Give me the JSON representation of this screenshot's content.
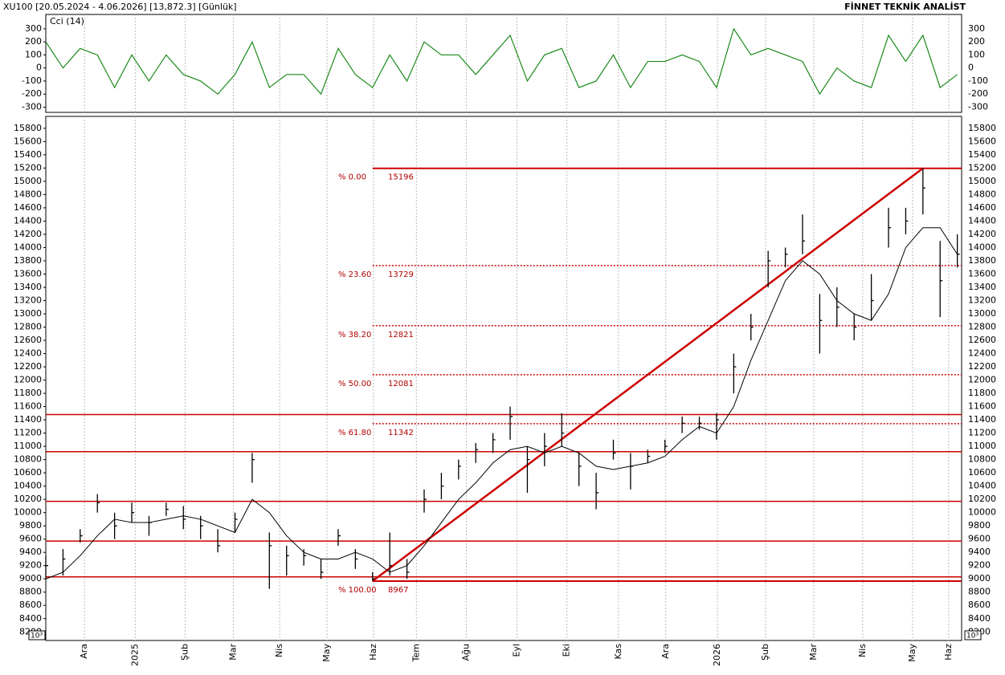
{
  "header": {
    "title": "XU100  [20.05.2024 - 4.06.2026]  [13,872.3]  [Günlük]",
    "brand": "FİNNET TEKNİK ANALİST"
  },
  "chart_data": [
    {
      "type": "line",
      "x": [
        0,
        2,
        4,
        6,
        8,
        10,
        12,
        14,
        16,
        18,
        20,
        22,
        24,
        26,
        28,
        30,
        32,
        34,
        36,
        38,
        40,
        42,
        44,
        46,
        48,
        50,
        52,
        54,
        56,
        58,
        60,
        62,
        64,
        66,
        68,
        70,
        72,
        74,
        76,
        78,
        80,
        82,
        84,
        86,
        88,
        90,
        92,
        94,
        96,
        98,
        100,
        102,
        104,
        106
      ],
      "series": [
        {
          "name": "Cci (14)",
          "color": "#1a8a1a",
          "values": [
            200,
            0,
            150,
            100,
            -150,
            100,
            -100,
            100,
            -50,
            -100,
            -200,
            -50,
            200,
            -150,
            -50,
            -50,
            -200,
            150,
            -50,
            -150,
            100,
            -100,
            200,
            100,
            100,
            -50,
            100,
            250,
            -100,
            100,
            150,
            -150,
            -100,
            100,
            -150,
            50,
            50,
            100,
            50,
            -150,
            300,
            100,
            150,
            100,
            50,
            -200,
            0,
            -100,
            -150,
            250,
            50,
            250,
            -150,
            -50
          ]
        }
      ],
      "xlim": [
        0,
        106.5
      ],
      "ylim": [
        -340,
        410
      ],
      "yticks": [
        -300,
        -200,
        -100,
        0,
        100,
        200,
        300
      ]
    },
    {
      "type": "ohlc",
      "color": "#000000",
      "x": [
        0,
        2,
        4,
        6,
        8,
        10,
        12,
        14,
        16,
        18,
        20,
        22,
        24,
        26,
        28,
        30,
        32,
        34,
        36,
        38,
        40,
        42,
        44,
        46,
        48,
        50,
        52,
        54,
        56,
        58,
        60,
        62,
        64,
        66,
        68,
        70,
        72,
        74,
        76,
        78,
        80,
        82,
        84,
        86,
        88,
        90,
        92,
        94,
        96,
        98,
        100,
        102,
        104,
        106
      ],
      "high": [
        9350,
        9450,
        9750,
        10280,
        10000,
        10150,
        9950,
        10150,
        10100,
        9950,
        9750,
        10000,
        10900,
        9700,
        9500,
        9450,
        9300,
        9750,
        9450,
        9100,
        9700,
        9300,
        10350,
        10600,
        10800,
        11050,
        11200,
        11600,
        11000,
        11200,
        11500,
        10900,
        10600,
        11100,
        10900,
        10950,
        11100,
        11450,
        11450,
        11500,
        12400,
        13000,
        13950,
        14000,
        14500,
        13300,
        13400,
        13000,
        13600,
        14600,
        14600,
        15196,
        14100,
        14200
      ],
      "low": [
        9000,
        9050,
        9550,
        10000,
        9600,
        9850,
        9650,
        9950,
        9750,
        9600,
        9400,
        9700,
        10450,
        8850,
        9050,
        9200,
        9000,
        9500,
        9150,
        8967,
        9050,
        9000,
        10000,
        10200,
        10500,
        10750,
        10900,
        11100,
        10300,
        10700,
        11000,
        10400,
        10050,
        10800,
        10350,
        10750,
        10900,
        11200,
        11250,
        11100,
        11800,
        12600,
        13400,
        13700,
        13900,
        12400,
        12800,
        12600,
        12900,
        14000,
        14200,
        14500,
        12950,
        13700
      ],
      "close": [
        9200,
        9300,
        9650,
        10150,
        9800,
        10000,
        9850,
        10050,
        9900,
        9800,
        9500,
        9900,
        10800,
        9500,
        9350,
        9350,
        9100,
        9650,
        9300,
        9000,
        9200,
        9100,
        10200,
        10400,
        10700,
        10950,
        11100,
        11450,
        10800,
        11000,
        11200,
        10700,
        10300,
        10900,
        10700,
        10850,
        11000,
        11350,
        11350,
        11400,
        12200,
        12800,
        13800,
        13900,
        14100,
        12900,
        13100,
        12800,
        13200,
        14300,
        14400,
        14900,
        13500,
        13900
      ],
      "ma": {
        "color": "#000000",
        "values": [
          9000,
          9100,
          9350,
          9650,
          9900,
          9850,
          9850,
          9900,
          9950,
          9900,
          9800,
          9700,
          10200,
          10000,
          9650,
          9400,
          9300,
          9300,
          9400,
          9300,
          9100,
          9200,
          9500,
          9850,
          10200,
          10450,
          10750,
          10950,
          11000,
          10900,
          11000,
          10900,
          10700,
          10650,
          10700,
          10750,
          10850,
          11100,
          11300,
          11200,
          11600,
          12300,
          12900,
          13500,
          13800,
          13600,
          13200,
          13000,
          12900,
          13300,
          14000,
          14300,
          14300,
          13900
        ]
      },
      "xlim": [
        0,
        106.5
      ],
      "ylim": [
        8070,
        15980
      ],
      "yticks": [
        8200,
        8400,
        8600,
        8800,
        9000,
        9200,
        9400,
        9600,
        9800,
        10000,
        10200,
        10400,
        10600,
        10800,
        11000,
        11200,
        11400,
        11600,
        11800,
        12000,
        12200,
        12400,
        12600,
        12800,
        13000,
        13200,
        13400,
        13600,
        13800,
        14000,
        14200,
        14400,
        14600,
        14800,
        15000,
        15200,
        15400,
        15600,
        15800
      ],
      "xticks": [
        {
          "value": 4.5,
          "label": "Ara"
        },
        {
          "value": 10.4,
          "label": "2025"
        },
        {
          "value": 16.2,
          "label": "Şub"
        },
        {
          "value": 21.8,
          "label": "Mar"
        },
        {
          "value": 27.2,
          "label": "Nis"
        },
        {
          "value": 32.7,
          "label": "May"
        },
        {
          "value": 38.1,
          "label": "Haz"
        },
        {
          "value": 43.1,
          "label": "Tem"
        },
        {
          "value": 48.9,
          "label": "Ağu"
        },
        {
          "value": 54.8,
          "label": "Eyl"
        },
        {
          "value": 60.6,
          "label": "Eki"
        },
        {
          "value": 66.6,
          "label": "Kas"
        },
        {
          "value": 72.1,
          "label": "Ara"
        },
        {
          "value": 78.1,
          "label": "2026"
        },
        {
          "value": 83.7,
          "label": "Şub"
        },
        {
          "value": 89.3,
          "label": "Mar"
        },
        {
          "value": 95,
          "label": "Nis"
        },
        {
          "value": 100.8,
          "label": "May"
        },
        {
          "value": 105,
          "label": "Haz"
        }
      ],
      "grid": true,
      "line_color": "#cc0000",
      "trend": {
        "x": [
          38,
          102
        ],
        "values": [
          8967,
          15196
        ]
      },
      "levels": [
        11480,
        10920,
        10170,
        9570,
        9030
      ],
      "fib": [
        {
          "label": "% 0.00",
          "value": 15196
        },
        {
          "label": "% 23.60",
          "value": 13729
        },
        {
          "label": "% 38.20",
          "value": 12821
        },
        {
          "label": "% 50.00",
          "value": 12081
        },
        {
          "label": "% 61.80",
          "value": 11342
        },
        {
          "label": "% 100.00",
          "value": 8967
        }
      ],
      "scale_label": "10³"
    }
  ]
}
